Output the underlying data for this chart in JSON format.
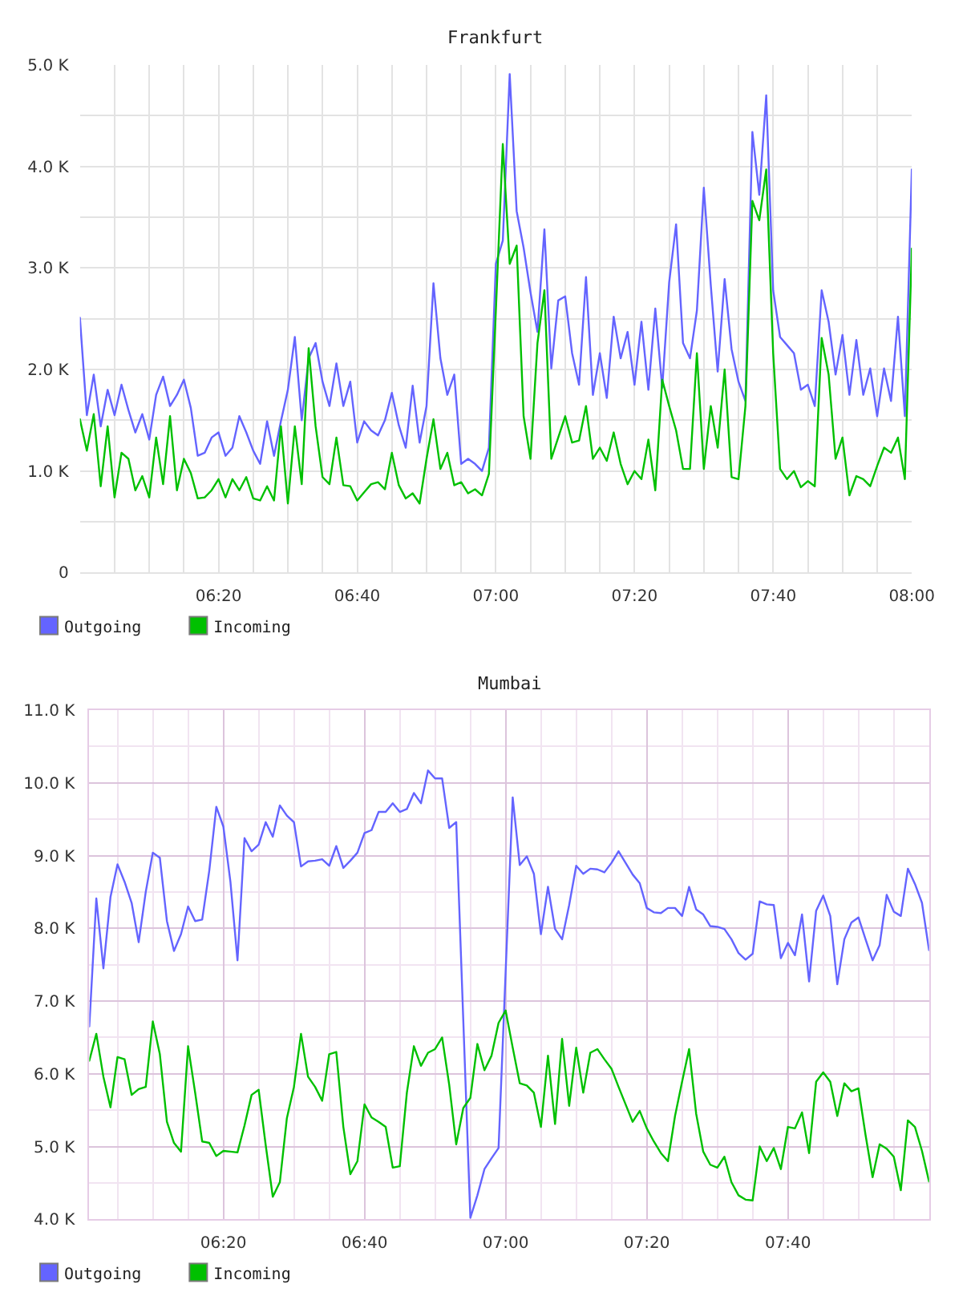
{
  "chart_data": [
    {
      "type": "line",
      "title": "Frankfurt",
      "x": [
        6,
        6.0167,
        6.0333,
        6.05,
        6.0667,
        6.0833,
        6.1,
        6.1167,
        6.1333,
        6.15,
        6.1667,
        6.1833,
        6.2,
        6.2167,
        6.2333,
        6.25,
        6.2667,
        6.2833,
        6.3,
        6.3167,
        6.3333,
        6.35,
        6.3667,
        6.3833,
        6.4,
        6.4167,
        6.4333,
        6.45,
        6.4667,
        6.4833,
        6.5,
        6.5167,
        6.5333,
        6.55,
        6.5667,
        6.5833,
        6.6,
        6.6167,
        6.6333,
        6.65,
        6.6667,
        6.6833,
        6.7,
        6.7167,
        6.7333,
        6.75,
        6.7667,
        6.7833,
        6.8,
        6.8167,
        6.8333,
        6.85,
        6.8667,
        6.8833,
        6.9,
        6.9167,
        6.9333,
        6.95,
        6.9667,
        6.9833,
        7,
        7.0167,
        7.0333,
        7.05,
        7.0667,
        7.0833,
        7.1,
        7.1167,
        7.1333,
        7.15,
        7.1667,
        7.1833,
        7.2,
        7.2167,
        7.2333,
        7.25,
        7.2667,
        7.2833,
        7.3,
        7.3167,
        7.3333,
        7.35,
        7.3667,
        7.3833,
        7.4,
        7.4167,
        7.4333,
        7.45,
        7.4667,
        7.4833,
        7.5,
        7.5167,
        7.5333,
        7.55,
        7.5667,
        7.5833,
        7.6,
        7.6167,
        7.6333,
        7.65,
        7.6667,
        7.6833,
        7.7,
        7.7167,
        7.7333,
        7.75,
        7.7667,
        7.7833,
        7.8,
        7.8167,
        7.8333,
        7.85,
        7.8667,
        7.8833,
        7.9,
        7.9167,
        7.9333,
        7.95,
        7.9667,
        7.9833,
        8
      ],
      "series": [
        {
          "name": "Outgoing",
          "color": "#6464ff",
          "values": [
            2510,
            1550,
            1950,
            1440,
            1800,
            1550,
            1850,
            1600,
            1380,
            1560,
            1310,
            1750,
            1930,
            1640,
            1750,
            1900,
            1620,
            1150,
            1180,
            1330,
            1380,
            1150,
            1230,
            1540,
            1380,
            1200,
            1070,
            1490,
            1150,
            1490,
            1800,
            2320,
            1500,
            2110,
            2260,
            1880,
            1640,
            2060,
            1640,
            1880,
            1280,
            1490,
            1400,
            1350,
            1500,
            1770,
            1450,
            1230,
            1840,
            1280,
            1640,
            2850,
            2110,
            1750,
            1950,
            1070,
            1120,
            1070,
            1000,
            1230,
            3040,
            3270,
            4910,
            3560,
            3200,
            2760,
            2370,
            3380,
            2010,
            2680,
            2720,
            2160,
            1850,
            2910,
            1750,
            2160,
            1720,
            2520,
            2110,
            2370,
            1850,
            2470,
            1800,
            2600,
            1820,
            2860,
            3430,
            2260,
            2110,
            2580,
            3790,
            2830,
            1980,
            2890,
            2200,
            1880,
            1690,
            4340,
            3720,
            4700,
            2780,
            2320,
            2240,
            2160,
            1800,
            1850,
            1640,
            2780,
            2470,
            1950,
            2340,
            1750,
            2290,
            1750,
            2010,
            1540,
            2010,
            1690,
            2520,
            1540,
            3970
          ]
        },
        {
          "name": "Incoming",
          "color": "#00c000",
          "values": [
            1510,
            1200,
            1560,
            850,
            1440,
            740,
            1180,
            1120,
            810,
            950,
            740,
            1330,
            870,
            1540,
            810,
            1120,
            980,
            730,
            740,
            810,
            920,
            740,
            920,
            810,
            940,
            730,
            710,
            850,
            710,
            1440,
            680,
            1440,
            870,
            2210,
            1440,
            940,
            870,
            1330,
            860,
            850,
            710,
            790,
            870,
            890,
            820,
            1180,
            860,
            730,
            780,
            680,
            1120,
            1510,
            1020,
            1180,
            860,
            890,
            780,
            820,
            760,
            970,
            2580,
            4220,
            3040,
            3220,
            1540,
            1120,
            2260,
            2780,
            1120,
            1330,
            1540,
            1280,
            1300,
            1640,
            1120,
            1230,
            1100,
            1380,
            1070,
            870,
            1000,
            920,
            1310,
            810,
            1900,
            1640,
            1400,
            1020,
            1020,
            2160,
            1020,
            1640,
            1230,
            2000,
            940,
            920,
            1640,
            3660,
            3470,
            3970,
            2160,
            1020,
            920,
            1000,
            840,
            900,
            850,
            2310,
            1950,
            1120,
            1330,
            760,
            950,
            920,
            850,
            1050,
            1230,
            1180,
            1330,
            920,
            3190
          ]
        }
      ],
      "xlim": [
        6,
        8
      ],
      "xticks": [
        {
          "value": 6.0833,
          "label": null
        },
        {
          "value": 6.1667,
          "label": null
        },
        {
          "value": 6.25,
          "label": null
        },
        {
          "value": 6.3333,
          "label": "06:20"
        },
        {
          "value": 6.4167,
          "label": null
        },
        {
          "value": 6.5,
          "label": null
        },
        {
          "value": 6.5833,
          "label": null
        },
        {
          "value": 6.6667,
          "label": "06:40"
        },
        {
          "value": 6.75,
          "label": null
        },
        {
          "value": 6.8333,
          "label": null
        },
        {
          "value": 6.9167,
          "label": null
        },
        {
          "value": 7,
          "label": "07:00"
        },
        {
          "value": 7.0833,
          "label": null
        },
        {
          "value": 7.1667,
          "label": null
        },
        {
          "value": 7.25,
          "label": null
        },
        {
          "value": 7.3333,
          "label": "07:20"
        },
        {
          "value": 7.4167,
          "label": null
        },
        {
          "value": 7.5,
          "label": null
        },
        {
          "value": 7.5833,
          "label": null
        },
        {
          "value": 7.6667,
          "label": "07:40"
        },
        {
          "value": 7.75,
          "label": null
        },
        {
          "value": 7.8333,
          "label": null
        },
        {
          "value": 7.9167,
          "label": null
        },
        {
          "value": 8,
          "label": "08:00"
        }
      ],
      "ylim": [
        0,
        5000
      ],
      "yticks": [
        0,
        {
          "value": 500,
          "label": null
        },
        {
          "value": 1000,
          "label": "1.0 K"
        },
        {
          "value": 1500,
          "label": null
        },
        {
          "value": 2000,
          "label": "2.0 K"
        },
        {
          "value": 2500,
          "label": null
        },
        {
          "value": 3000,
          "label": "3.0 K"
        },
        {
          "value": 3500,
          "label": null
        },
        {
          "value": 4000,
          "label": "4.0 K"
        },
        {
          "value": 4500,
          "label": null
        },
        {
          "value": 5000,
          "label": "5.0 K"
        }
      ],
      "grid": true,
      "legend": "bottom left"
    },
    {
      "type": "line",
      "title": "Mumbai",
      "x": [
        6.0167,
        6.0333,
        6.05,
        6.0667,
        6.0833,
        6.1,
        6.1167,
        6.1333,
        6.15,
        6.1667,
        6.1833,
        6.2,
        6.2167,
        6.2333,
        6.25,
        6.2667,
        6.2833,
        6.3,
        6.3167,
        6.3333,
        6.35,
        6.3667,
        6.3833,
        6.4,
        6.4167,
        6.4333,
        6.45,
        6.4667,
        6.4833,
        6.5,
        6.5167,
        6.5333,
        6.55,
        6.5667,
        6.5833,
        6.6,
        6.6167,
        6.6333,
        6.65,
        6.6667,
        6.6833,
        6.7,
        6.7167,
        6.7333,
        6.75,
        6.7667,
        6.7833,
        6.8,
        6.8167,
        6.8333,
        6.85,
        6.8667,
        6.8833,
        6.9,
        6.9167,
        6.9333,
        6.95,
        6.9667,
        6.9833,
        7,
        7.0167,
        7.0333,
        7.05,
        7.0667,
        7.0833,
        7.1,
        7.1167,
        7.1333,
        7.15,
        7.1667,
        7.1833,
        7.2,
        7.2167,
        7.2333,
        7.25,
        7.2667,
        7.2833,
        7.3,
        7.3167,
        7.3333,
        7.35,
        7.3667,
        7.3833,
        7.4,
        7.4167,
        7.4333,
        7.45,
        7.4667,
        7.4833,
        7.5,
        7.5167,
        7.5333,
        7.55,
        7.5667,
        7.5833,
        7.6,
        7.6167,
        7.6333,
        7.65,
        7.6667,
        7.6833,
        7.7,
        7.7167,
        7.7333,
        7.75,
        7.7667,
        7.7833,
        7.8,
        7.8167,
        7.8333,
        7.85,
        7.8667,
        7.8833,
        7.9,
        7.9167,
        7.9333,
        7.95,
        7.9667,
        7.9833,
        8
      ],
      "series": [
        {
          "name": "Outgoing",
          "color": "#6464ff",
          "values": [
            6650,
            8410,
            7450,
            8430,
            8880,
            8640,
            8350,
            7810,
            8500,
            9040,
            8970,
            8100,
            7690,
            7920,
            8300,
            8100,
            8120,
            8790,
            9670,
            9400,
            8640,
            7560,
            9240,
            9060,
            9150,
            9460,
            9260,
            9690,
            9550,
            9460,
            8850,
            8920,
            8930,
            8950,
            8860,
            9130,
            8830,
            8930,
            9040,
            9310,
            9350,
            9600,
            9600,
            9720,
            9600,
            9640,
            9860,
            9720,
            10170,
            10060,
            10060,
            9380,
            9460,
            6730,
            4020,
            4330,
            4690,
            4840,
            4980,
            7400,
            9800,
            8870,
            8990,
            8750,
            7920,
            8570,
            7990,
            7850,
            8320,
            8860,
            8750,
            8820,
            8810,
            8770,
            8900,
            9060,
            8900,
            8740,
            8620,
            8280,
            8220,
            8210,
            8280,
            8280,
            8170,
            8570,
            8260,
            8190,
            8030,
            8020,
            7990,
            7850,
            7660,
            7570,
            7650,
            8370,
            8330,
            8320,
            7590,
            7800,
            7630,
            8190,
            7270,
            8240,
            8450,
            8170,
            7230,
            7850,
            8080,
            8150,
            7850,
            7560,
            7770,
            8460,
            8230,
            8170,
            8820,
            8610,
            8350,
            7700
          ]
        },
        {
          "name": "Incoming",
          "color": "#00c000",
          "values": [
            6180,
            6550,
            5960,
            5540,
            6230,
            6200,
            5710,
            5790,
            5820,
            6720,
            6270,
            5340,
            5050,
            4930,
            6380,
            5740,
            5070,
            5050,
            4870,
            4940,
            4930,
            4920,
            5290,
            5710,
            5780,
            5020,
            4310,
            4510,
            5390,
            5820,
            6550,
            5960,
            5820,
            5630,
            6270,
            6300,
            5270,
            4620,
            4800,
            5580,
            5400,
            5340,
            5270,
            4710,
            4730,
            5740,
            6380,
            6110,
            6290,
            6340,
            6500,
            5850,
            5030,
            5530,
            5670,
            6410,
            6050,
            6250,
            6700,
            6870,
            6360,
            5870,
            5840,
            5740,
            5270,
            6250,
            5310,
            6480,
            5560,
            6360,
            5740,
            6290,
            6340,
            6200,
            6070,
            5820,
            5580,
            5340,
            5490,
            5250,
            5070,
            4910,
            4800,
            5420,
            5890,
            6340,
            5450,
            4930,
            4750,
            4710,
            4860,
            4510,
            4330,
            4270,
            4260,
            5000,
            4800,
            4980,
            4690,
            5270,
            5250,
            5470,
            4910,
            5890,
            6020,
            5890,
            5420,
            5870,
            5760,
            5800,
            5160,
            4580,
            5030,
            4970,
            4860,
            4400,
            5360,
            5270,
            4940,
            4520
          ]
        }
      ],
      "xlim": [
        6.0167,
        8
      ],
      "xticks": [
        {
          "value": 6.0833,
          "label": null
        },
        {
          "value": 6.1667,
          "label": null
        },
        {
          "value": 6.25,
          "label": null
        },
        {
          "value": 6.3333,
          "label": "06:20"
        },
        {
          "value": 6.4167,
          "label": null
        },
        {
          "value": 6.5,
          "label": null
        },
        {
          "value": 6.5833,
          "label": null
        },
        {
          "value": 6.6667,
          "label": "06:40"
        },
        {
          "value": 6.75,
          "label": null
        },
        {
          "value": 6.8333,
          "label": null
        },
        {
          "value": 6.9167,
          "label": null
        },
        {
          "value": 7,
          "label": "07:00"
        },
        {
          "value": 7.0833,
          "label": null
        },
        {
          "value": 7.1667,
          "label": null
        },
        {
          "value": 7.25,
          "label": null
        },
        {
          "value": 7.3333,
          "label": "07:20"
        },
        {
          "value": 7.4167,
          "label": null
        },
        {
          "value": 7.5,
          "label": null
        },
        {
          "value": 7.5833,
          "label": null
        },
        {
          "value": 7.6667,
          "label": "07:40"
        },
        {
          "value": 7.75,
          "label": null
        },
        {
          "value": 7.8333,
          "label": null
        },
        {
          "value": 7.9167,
          "label": null
        }
      ],
      "ylim": [
        4000,
        11000
      ],
      "yticks": [
        {
          "value": 4000,
          "label": "4.0 K"
        },
        {
          "value": 4500,
          "label": null
        },
        {
          "value": 5000,
          "label": "5.0 K"
        },
        {
          "value": 5500,
          "label": null
        },
        {
          "value": 6000,
          "label": "6.0 K"
        },
        {
          "value": 6500,
          "label": null
        },
        {
          "value": 7000,
          "label": "7.0 K"
        },
        {
          "value": 7500,
          "label": null
        },
        {
          "value": 8000,
          "label": "8.0 K"
        },
        {
          "value": 8500,
          "label": null
        },
        {
          "value": 9000,
          "label": "9.0 K"
        },
        {
          "value": 9500,
          "label": null
        },
        {
          "value": 10000,
          "label": "10.0 K"
        },
        {
          "value": 10500,
          "label": null
        },
        {
          "value": 11000,
          "label": "11.0 K"
        }
      ],
      "grid": true,
      "legend": "bottom left"
    }
  ]
}
